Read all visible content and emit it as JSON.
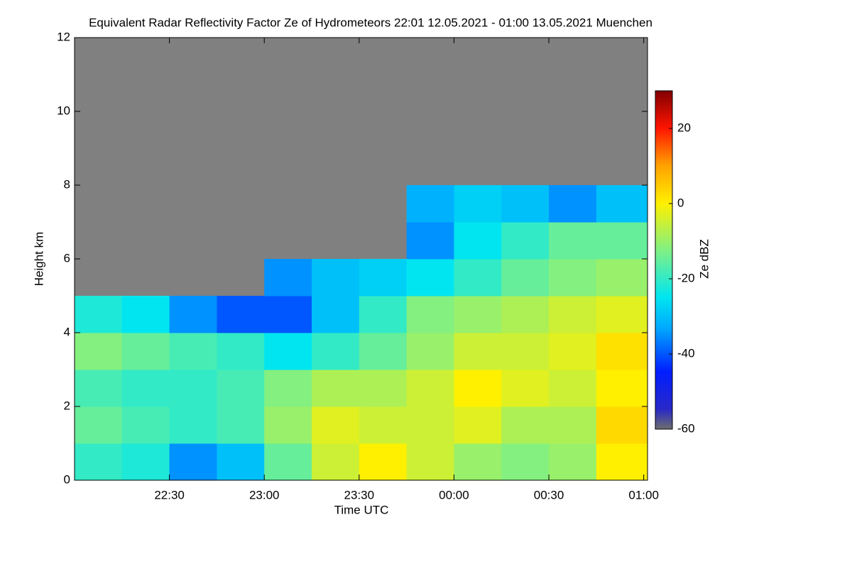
{
  "chart_data": {
    "type": "heatmap",
    "title": "Equivalent Radar Reflectivity Factor Ze of Hydrometeors   22:01 12.05.2021 - 01:00 13.05.2021 Muenchen",
    "xlabel": "Time UTC",
    "ylabel": "Height km",
    "colorbar_label": "Ze dBZ",
    "x": [
      22.0,
      22.25,
      22.5,
      22.75,
      23.0,
      23.25,
      23.5,
      23.75,
      24.0,
      24.25,
      24.5,
      24.75,
      25.02
    ],
    "y": [
      0,
      1,
      2,
      3,
      4,
      5,
      6,
      7,
      8,
      9,
      10,
      11,
      12
    ],
    "z": [
      [
        -20,
        -22,
        -35,
        -30,
        -15,
        -5,
        0,
        -5,
        -10,
        -12,
        -10,
        0
      ],
      [
        -15,
        -18,
        -20,
        -18,
        -10,
        -3,
        -5,
        -5,
        -3,
        -8,
        -8,
        3
      ],
      [
        -18,
        -20,
        -20,
        -18,
        -12,
        -8,
        -8,
        -5,
        0,
        -3,
        -5,
        0
      ],
      [
        -12,
        -15,
        -18,
        -20,
        -25,
        -20,
        -15,
        -10,
        -5,
        -5,
        -3,
        2
      ],
      [
        -22,
        -25,
        -35,
        -40,
        -40,
        -30,
        -20,
        -12,
        -10,
        -8,
        -5,
        -3
      ],
      [
        null,
        null,
        null,
        null,
        -35,
        -30,
        -28,
        -25,
        -20,
        -15,
        -12,
        -10
      ],
      [
        null,
        null,
        null,
        null,
        null,
        null,
        null,
        -35,
        -25,
        -20,
        -15,
        -15
      ],
      [
        null,
        null,
        null,
        null,
        null,
        null,
        null,
        -32,
        -28,
        -30,
        -35,
        -30
      ],
      [
        null,
        null,
        null,
        null,
        null,
        null,
        null,
        null,
        null,
        null,
        null,
        null
      ],
      [
        null,
        null,
        null,
        null,
        null,
        null,
        null,
        null,
        null,
        null,
        null,
        null
      ],
      [
        null,
        null,
        null,
        null,
        null,
        null,
        null,
        null,
        null,
        null,
        null,
        null
      ],
      [
        null,
        null,
        null,
        null,
        null,
        null,
        null,
        null,
        null,
        null,
        null,
        null
      ]
    ],
    "xlim": [
      22.0,
      25.02
    ],
    "xticks": [
      {
        "value": 22.5,
        "label": "22:30"
      },
      {
        "value": 23.0,
        "label": "23:00"
      },
      {
        "value": 23.5,
        "label": "23:30"
      },
      {
        "value": 24.0,
        "label": "00:00"
      },
      {
        "value": 24.5,
        "label": "00:30"
      },
      {
        "value": 25.0,
        "label": "01:00"
      }
    ],
    "ylim": [
      0,
      12
    ],
    "yticks": [
      0,
      2,
      4,
      6,
      8,
      10,
      12
    ],
    "zlim": [
      -60,
      30
    ],
    "zticks": [
      20,
      0,
      -20,
      -40,
      -60
    ],
    "missing_color": "#808080"
  }
}
